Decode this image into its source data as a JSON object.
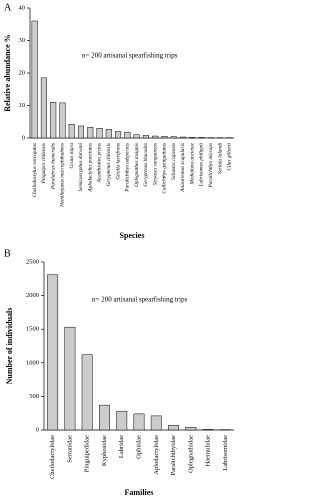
{
  "chart_data": [
    {
      "type": "bar",
      "panel_label": "A",
      "ylabel": "Relative abundance %",
      "xlabel": "Species",
      "annotation": "n= 200 artisanal spearfishing trips",
      "categories": [
        "Cheilodactylus variegatus",
        "Pinguipes chilensis",
        "Paralabrax humeralis",
        "Hemilutjanus macrophthalmos",
        "Graus nigra",
        "Semicossyphus darwini",
        "Aplodactylus punctatus",
        "Acanthistius pictus",
        "Geryptenus chilensis",
        "Girella laevifrons",
        "Paralichthys adspersus",
        "Oplegnathus insignis",
        "Geryptenus blacodes",
        "Sicyases sanguineus",
        "Callichthys geniguttatus",
        "Sebastes capensis",
        "Anisotremus scapularis",
        "Medialuna ancietae",
        "Labrisomus philippii",
        "Paralichthys microps",
        "Seriola lalandi",
        "Cilus gilberti"
      ],
      "values": [
        36,
        18.5,
        11,
        10.8,
        4.2,
        3.7,
        3.3,
        3.0,
        2.7,
        2.0,
        1.8,
        1.0,
        0.8,
        0.6,
        0.5,
        0.4,
        0.3,
        0.2,
        0.2,
        0.1,
        0.1,
        0.1
      ],
      "color": "#cccccc",
      "ylim": [
        0,
        40
      ],
      "yticks": [
        0,
        10,
        20,
        30,
        40
      ],
      "grid": false
    },
    {
      "type": "bar",
      "panel_label": "B",
      "ylabel": "Number of individuals",
      "xlabel": "Families",
      "annotation": "n= 200 artisanal spearfishing trips",
      "categories": [
        "Cheilodactylidae",
        "Serranidae",
        "Pinguipedidae",
        "Kyphosidae",
        "Labridae",
        "Ophiidae",
        "Aplodactylidae",
        "Paralichthyidae",
        "Oplegnathidae",
        "Haemulidae",
        "Labrisomidae"
      ],
      "values": [
        2310,
        1530,
        1120,
        370,
        280,
        240,
        210,
        70,
        40,
        10,
        5
      ],
      "color": "#cccccc",
      "ylim": [
        0,
        2500
      ],
      "yticks": [
        0,
        500,
        1000,
        1500,
        2000,
        2500
      ],
      "grid": false
    }
  ]
}
